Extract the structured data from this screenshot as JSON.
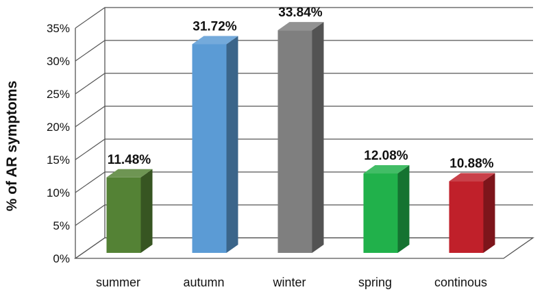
{
  "chart_data": {
    "type": "bar",
    "style": "3d-column",
    "ylabel": "% of AR symptoms",
    "ylim": [
      0,
      35
    ],
    "yticks": [
      0,
      5,
      10,
      15,
      20,
      25,
      30,
      35
    ],
    "ytick_suffix": "%",
    "grid": true,
    "legend": "none",
    "categories": [
      "summer",
      "autumn",
      "winter",
      "spring",
      "continous"
    ],
    "values": [
      11.48,
      31.72,
      33.84,
      12.08,
      10.88
    ],
    "data_labels": [
      "11.48%",
      "31.72%",
      "33.84%",
      "12.08%",
      "10.88%"
    ],
    "colors": [
      "#548235",
      "#5b9bd5",
      "#7f7f7f",
      "#21b14b",
      "#c0202a"
    ]
  }
}
